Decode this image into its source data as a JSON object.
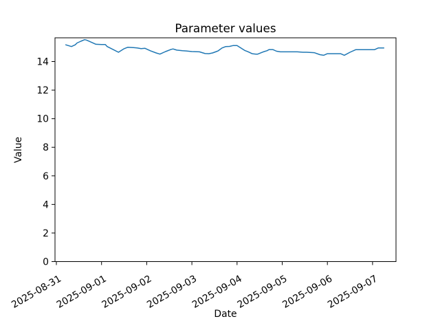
{
  "figure": {
    "background": "#ffffff",
    "axis_color": "#000000",
    "line_color": "#1f77b4"
  },
  "chart_data": {
    "type": "line",
    "title": "Parameter values",
    "xlabel": "Date",
    "ylabel": "Value",
    "grid": false,
    "legend": null,
    "ylim": [
      0,
      15.66
    ],
    "y_ticks": [
      0,
      2,
      4,
      6,
      8,
      10,
      12,
      14
    ],
    "x_tick_labels": [
      "2025-08-31",
      "2025-09-01",
      "2025-09-02",
      "2025-09-03",
      "2025-09-04",
      "2025-09-05",
      "2025-09-06",
      "2025-09-07"
    ],
    "x_unit": "hours since 2025-08-31 00:00",
    "series": [
      {
        "name": "Parameter values",
        "x_hours": [
          5,
          8,
          10,
          11,
          13,
          15,
          16,
          19,
          21,
          24,
          26,
          27,
          30,
          33,
          36,
          38,
          41,
          43,
          45,
          47,
          50,
          53,
          55,
          58,
          61,
          62,
          64,
          67,
          69,
          72,
          76,
          79,
          81,
          83,
          85,
          86,
          88,
          90,
          92,
          94,
          96,
          98,
          100,
          102,
          104,
          106,
          107,
          110,
          112,
          113,
          115,
          117,
          119,
          122,
          125,
          128,
          131,
          133,
          137,
          140,
          142,
          144,
          147,
          151,
          153,
          156,
          159,
          162,
          166,
          169,
          171,
          174
        ],
        "values": [
          15.17,
          15.05,
          15.17,
          15.3,
          15.42,
          15.53,
          15.5,
          15.33,
          15.21,
          15.19,
          15.19,
          15.05,
          14.85,
          14.65,
          14.9,
          15.0,
          14.97,
          14.95,
          14.9,
          14.93,
          14.75,
          14.6,
          14.52,
          14.7,
          14.85,
          14.88,
          14.8,
          14.76,
          14.74,
          14.7,
          14.68,
          14.56,
          14.55,
          14.6,
          14.7,
          14.75,
          14.95,
          15.05,
          15.06,
          15.12,
          15.12,
          14.95,
          14.78,
          14.68,
          14.55,
          14.52,
          14.52,
          14.68,
          14.76,
          14.84,
          14.84,
          14.72,
          14.68,
          14.68,
          14.68,
          14.68,
          14.65,
          14.65,
          14.62,
          14.48,
          14.44,
          14.55,
          14.55,
          14.55,
          14.44,
          14.65,
          14.83,
          14.83,
          14.83,
          14.83,
          14.95,
          14.95
        ]
      }
    ]
  }
}
